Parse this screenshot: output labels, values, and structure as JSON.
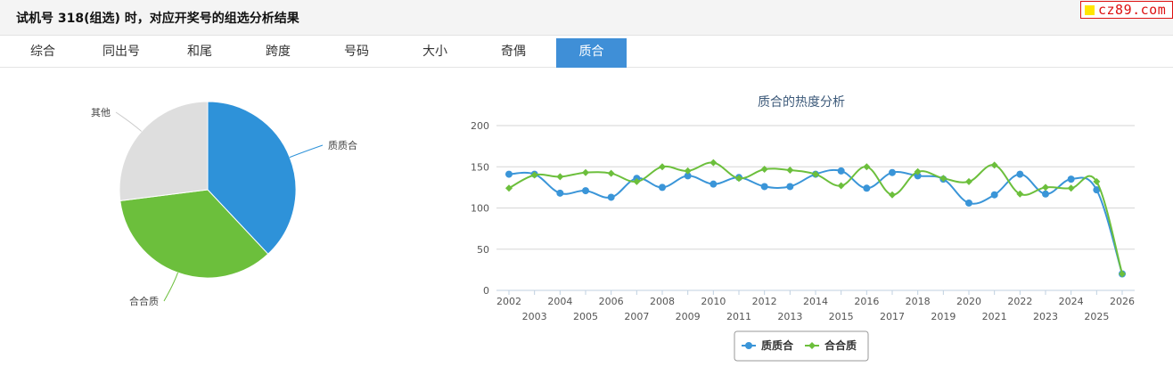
{
  "header": {
    "title": "试机号 318(组选) 时，对应开奖号的组选分析结果",
    "logo_text": "cz89.com"
  },
  "tabs": [
    {
      "label": "综合"
    },
    {
      "label": "同出号"
    },
    {
      "label": "和尾"
    },
    {
      "label": "跨度"
    },
    {
      "label": "号码"
    },
    {
      "label": "大小"
    },
    {
      "label": "奇偶"
    },
    {
      "label": "质合"
    }
  ],
  "active_tab": 7,
  "colors": {
    "series1": "#3a95d8",
    "series2": "#6cbf3c",
    "other": "#dcdcdc",
    "active_tab": "#3f8fd7"
  },
  "chart_data": [
    {
      "type": "pie",
      "slices": [
        {
          "label": "质质合",
          "value": 38,
          "color": "#2e92d9"
        },
        {
          "label": "合合质",
          "value": 35,
          "color": "#6cbf3c"
        },
        {
          "label": "其他",
          "value": 27,
          "color": "#dedede"
        }
      ]
    },
    {
      "type": "line",
      "title": "质合的热度分析",
      "ylim": [
        0,
        200
      ],
      "yticks": [
        0,
        50,
        100,
        150,
        200
      ],
      "x": [
        "2002",
        "2003",
        "2004",
        "2005",
        "2006",
        "2007",
        "2008",
        "2009",
        "2010",
        "2011",
        "2012",
        "2013",
        "2014",
        "2015",
        "2016",
        "2017",
        "2018",
        "2019",
        "2020",
        "2021",
        "2022",
        "2023",
        "2024",
        "2025",
        "2026"
      ],
      "series": [
        {
          "name": "质质合",
          "color": "#3a95d8",
          "values": [
            141,
            141,
            118,
            121,
            113,
            136,
            125,
            139,
            129,
            137,
            126,
            126,
            141,
            145,
            124,
            143,
            139,
            135,
            106,
            116,
            141,
            117,
            135,
            122,
            20
          ]
        },
        {
          "name": "合合质",
          "color": "#6cbf3c",
          "values": [
            124,
            140,
            138,
            143,
            142,
            132,
            150,
            145,
            155,
            136,
            147,
            146,
            141,
            127,
            150,
            116,
            144,
            136,
            132,
            152,
            117,
            125,
            124,
            132,
            20
          ]
        }
      ],
      "grid": true,
      "legend_position": "bottom"
    }
  ]
}
